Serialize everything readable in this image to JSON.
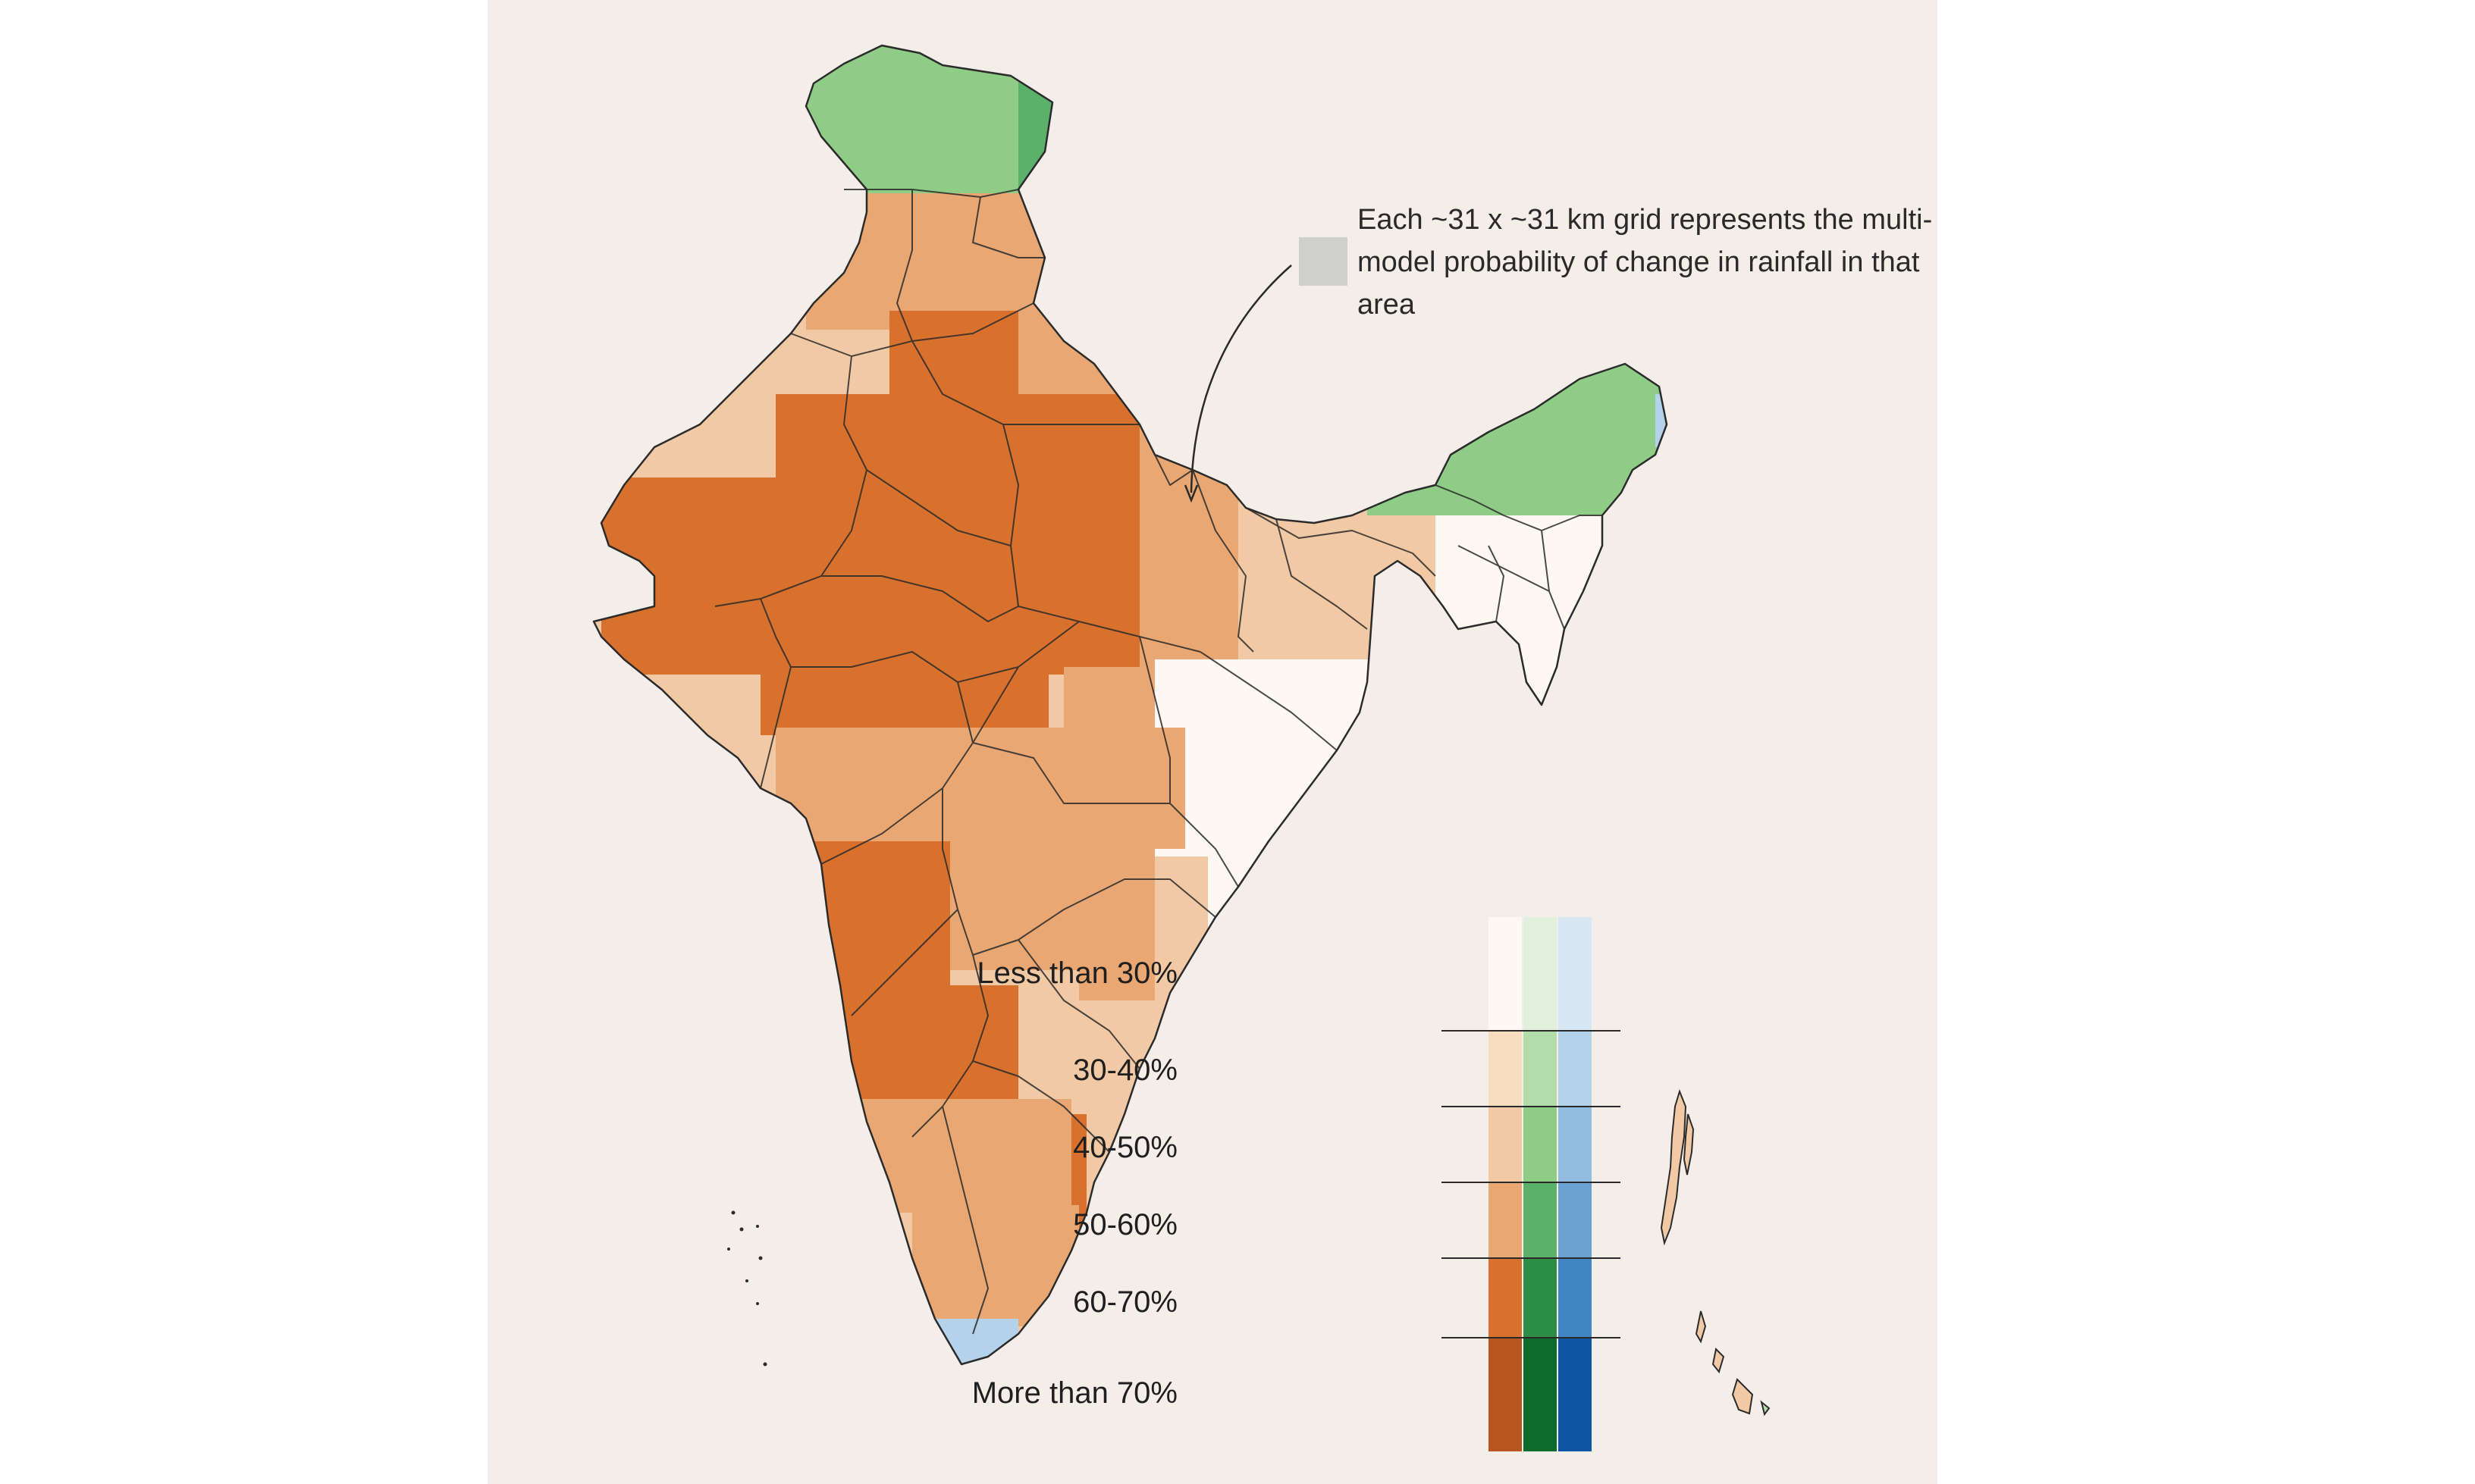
{
  "callout": {
    "text": "Each ~31 x ~31 km grid represents the multi-model probability of change in rainfall in that area"
  },
  "legend": {
    "ramps": {
      "orange": [
        "#fdf8f2",
        "#f8dcc0",
        "#f2c9a5",
        "#e9a873",
        "#d9712e",
        "#b85420"
      ],
      "green": [
        "#e1f0dc",
        "#b2ddab",
        "#8fcd86",
        "#5bb16a",
        "#2c8d45",
        "#0c6b2d"
      ],
      "blue": [
        "#d6e6f3",
        "#b4d2ea",
        "#92bde0",
        "#6aa3d2",
        "#3f86c3",
        "#0e55a4"
      ]
    },
    "rows": [
      {
        "label": "Less than 30%"
      },
      {
        "label": "30-40%"
      },
      {
        "label": "40-50%"
      },
      {
        "label": "50-60%"
      },
      {
        "label": "60-70%"
      },
      {
        "label": "More than 70%"
      }
    ]
  },
  "map": {
    "colors": {
      "outline": "#2b2b2b",
      "background": "#f4eee9"
    },
    "grid_cells": [
      {
        "region": "Ladakh / J&K north",
        "ramp": "green",
        "level": 2
      },
      {
        "region": "Ladakh east",
        "ramp": "green",
        "level": 3
      },
      {
        "region": "Himachal / Punjab",
        "ramp": "orange",
        "level": 3
      },
      {
        "region": "Rajasthan / Gujarat / MP",
        "ramp": "orange",
        "level": 4
      },
      {
        "region": "Uttar Pradesh",
        "ramp": "orange",
        "level": 3
      },
      {
        "region": "Bihar",
        "ramp": "orange",
        "level": 2
      },
      {
        "region": "Odisha / West Bengal",
        "ramp": "orange",
        "level": 0
      },
      {
        "region": "Maharashtra / Karnataka",
        "ramp": "orange",
        "level": 3
      },
      {
        "region": "Western Ghats",
        "ramp": "orange",
        "level": 4
      },
      {
        "region": "Tamil Nadu / Kerala",
        "ramp": "orange",
        "level": 3
      },
      {
        "region": "Arunachal Pradesh",
        "ramp": "green",
        "level": 2
      },
      {
        "region": "Northeast states",
        "ramp": "orange",
        "level": 0
      },
      {
        "region": "Southern tip",
        "ramp": "blue",
        "level": 1
      }
    ]
  }
}
